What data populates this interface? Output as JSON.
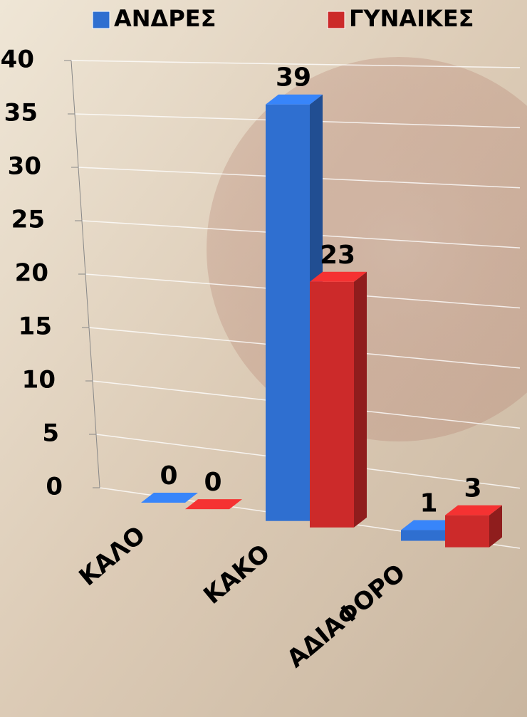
{
  "chart_data": {
    "type": "bar3d",
    "categories": [
      "ΚΑΛΟ",
      "ΚΑΚΟ",
      "ΑΔΙΑΦΟΡΟ"
    ],
    "series": [
      {
        "name": "ΑΝΔΡΕΣ",
        "color": "#2f6fd0",
        "values": [
          0,
          39,
          1
        ]
      },
      {
        "name": "ΓΥΝΑΙΚΕΣ",
        "color": "#cc2a2a",
        "values": [
          0,
          23,
          3
        ]
      }
    ],
    "ylim": [
      0,
      40
    ],
    "yticks": [
      0,
      5,
      10,
      15,
      20,
      25,
      30,
      35,
      40
    ],
    "grid": true,
    "legend": "top"
  }
}
